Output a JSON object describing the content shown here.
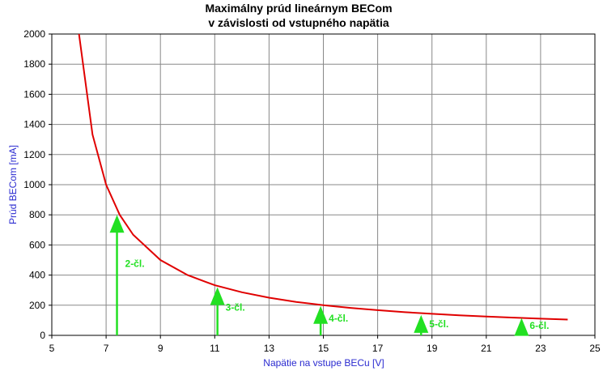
{
  "chart_data": {
    "type": "line",
    "title": [
      "Maximálny prúd lineárnym BECom",
      "v závislosti od vstupného napätia"
    ],
    "xlabel": "Napätie na vstupe BECu [V]",
    "ylabel": "Prúd BECom [mA]",
    "xlim": [
      5,
      25
    ],
    "ylim": [
      0,
      2000
    ],
    "xticks": [
      5,
      7,
      9,
      11,
      13,
      15,
      17,
      19,
      21,
      23,
      25
    ],
    "yticks": [
      0,
      200,
      400,
      600,
      800,
      1000,
      1200,
      1400,
      1600,
      1800,
      2000
    ],
    "grid": true,
    "series": [
      {
        "color": "#e00000",
        "x": [
          6.0,
          6.5,
          7.0,
          7.5,
          8.0,
          9.0,
          10.0,
          11.0,
          12.0,
          13.0,
          14.0,
          15.0,
          16.0,
          17.0,
          18.0,
          19.0,
          20.0,
          21.0,
          22.0,
          23.0,
          24.0
        ],
        "y": [
          2000,
          1333,
          1000,
          800,
          667,
          500,
          400,
          333,
          286,
          250,
          222,
          200,
          182,
          167,
          154,
          143,
          133,
          125,
          118,
          111,
          105
        ]
      }
    ],
    "annotations": [
      {
        "label": "2-čl.",
        "x": 7.4,
        "y": 800
      },
      {
        "label": "3-čl.",
        "x": 11.1,
        "y": 320
      },
      {
        "label": "4-čl.",
        "x": 14.9,
        "y": 195
      },
      {
        "label": "5-čl.",
        "x": 18.6,
        "y": 135
      },
      {
        "label": "6-čl.",
        "x": 22.3,
        "y": 115
      }
    ],
    "annotation_color": "#22e022",
    "axis_label_color": "#2b2bd0"
  }
}
